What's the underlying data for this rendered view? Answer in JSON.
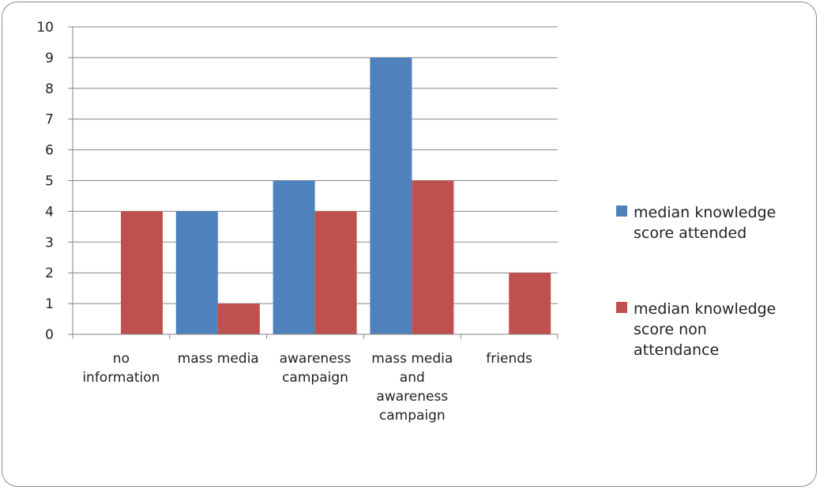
{
  "chart_data": {
    "type": "bar",
    "categories": [
      [
        "no",
        "information"
      ],
      [
        "mass media"
      ],
      [
        "awareness",
        "campaign"
      ],
      [
        "mass media",
        "and",
        "awareness",
        "campaign"
      ],
      [
        "friends"
      ]
    ],
    "series": [
      {
        "name": [
          "median knowledge",
          "score attended"
        ],
        "color": "#4f81bd",
        "values": [
          0,
          4,
          5,
          9,
          0
        ]
      },
      {
        "name": [
          "median knowledge",
          "score non",
          "attendance"
        ],
        "color": "#c0504d",
        "values": [
          4,
          1,
          4,
          5,
          2
        ]
      }
    ],
    "yticks": [
      "0",
      "1",
      "2",
      "3",
      "4",
      "5",
      "6",
      "7",
      "8",
      "9",
      "10"
    ],
    "ylim": [
      0,
      10
    ],
    "grid": true,
    "legend_position": "right"
  }
}
